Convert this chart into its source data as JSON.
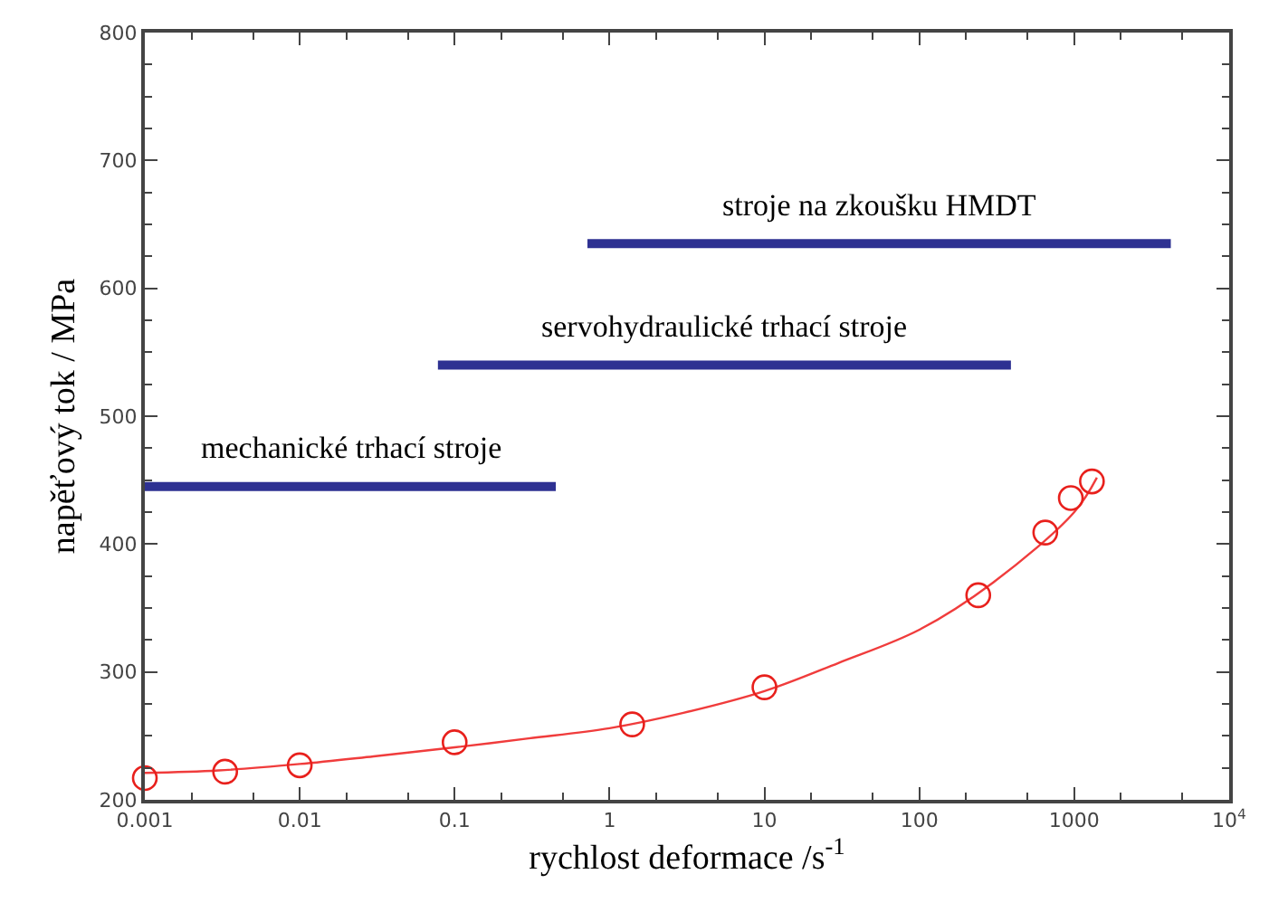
{
  "chart_data": {
    "type": "scatter",
    "xlabel": "rychlost deformace /s$^{-1}$",
    "ylabel": "napěťový tok / MPa",
    "log": "x",
    "legend": false,
    "marker": "circle",
    "xlim": [
      0.001,
      10000
    ],
    "xticks": [
      0.001,
      0.01,
      0.1,
      1,
      10,
      100,
      1000,
      {
        "value": 10000,
        "label": "10$^{4}$"
      }
    ],
    "ylim": [
      200,
      800
    ],
    "yticks": [
      200,
      300,
      400,
      500,
      600,
      700,
      800
    ],
    "series": [
      {
        "color": "#e8201c",
        "x": [
          0.001,
          0.0033,
          0.01,
          0.1,
          1.4,
          10,
          240,
          650,
          950,
          1300
        ],
        "values": [
          217,
          222,
          227,
          245,
          259,
          288,
          360,
          409,
          436,
          449
        ]
      },
      {
        "type": "line",
        "color": "#f03c3c",
        "marker": "none",
        "x": [
          0.001,
          0.003,
          0.01,
          0.03,
          0.1,
          0.3,
          1,
          3,
          10,
          30,
          100,
          300,
          1000,
          1400
        ],
        "values": [
          221,
          223,
          228,
          234,
          241,
          248,
          256,
          268,
          285,
          307,
          333,
          370,
          425,
          452
        ]
      },
      {
        "type": "line",
        "name": "mechanické trhací stroje",
        "color": "#2e3192",
        "marker": "none",
        "x": [
          0.001,
          0.45
        ],
        "values": [
          445,
          445
        ]
      },
      {
        "type": "line",
        "name": "servohydraulické trhací stroje",
        "color": "#2e3192",
        "marker": "none",
        "x": [
          0.078,
          390
        ],
        "values": [
          540,
          540
        ]
      },
      {
        "type": "line",
        "name": "stroje na zkoušku HMDT",
        "color": "#2e3192",
        "marker": "none",
        "x": [
          0.72,
          4200
        ],
        "values": [
          635,
          635
        ]
      }
    ]
  }
}
